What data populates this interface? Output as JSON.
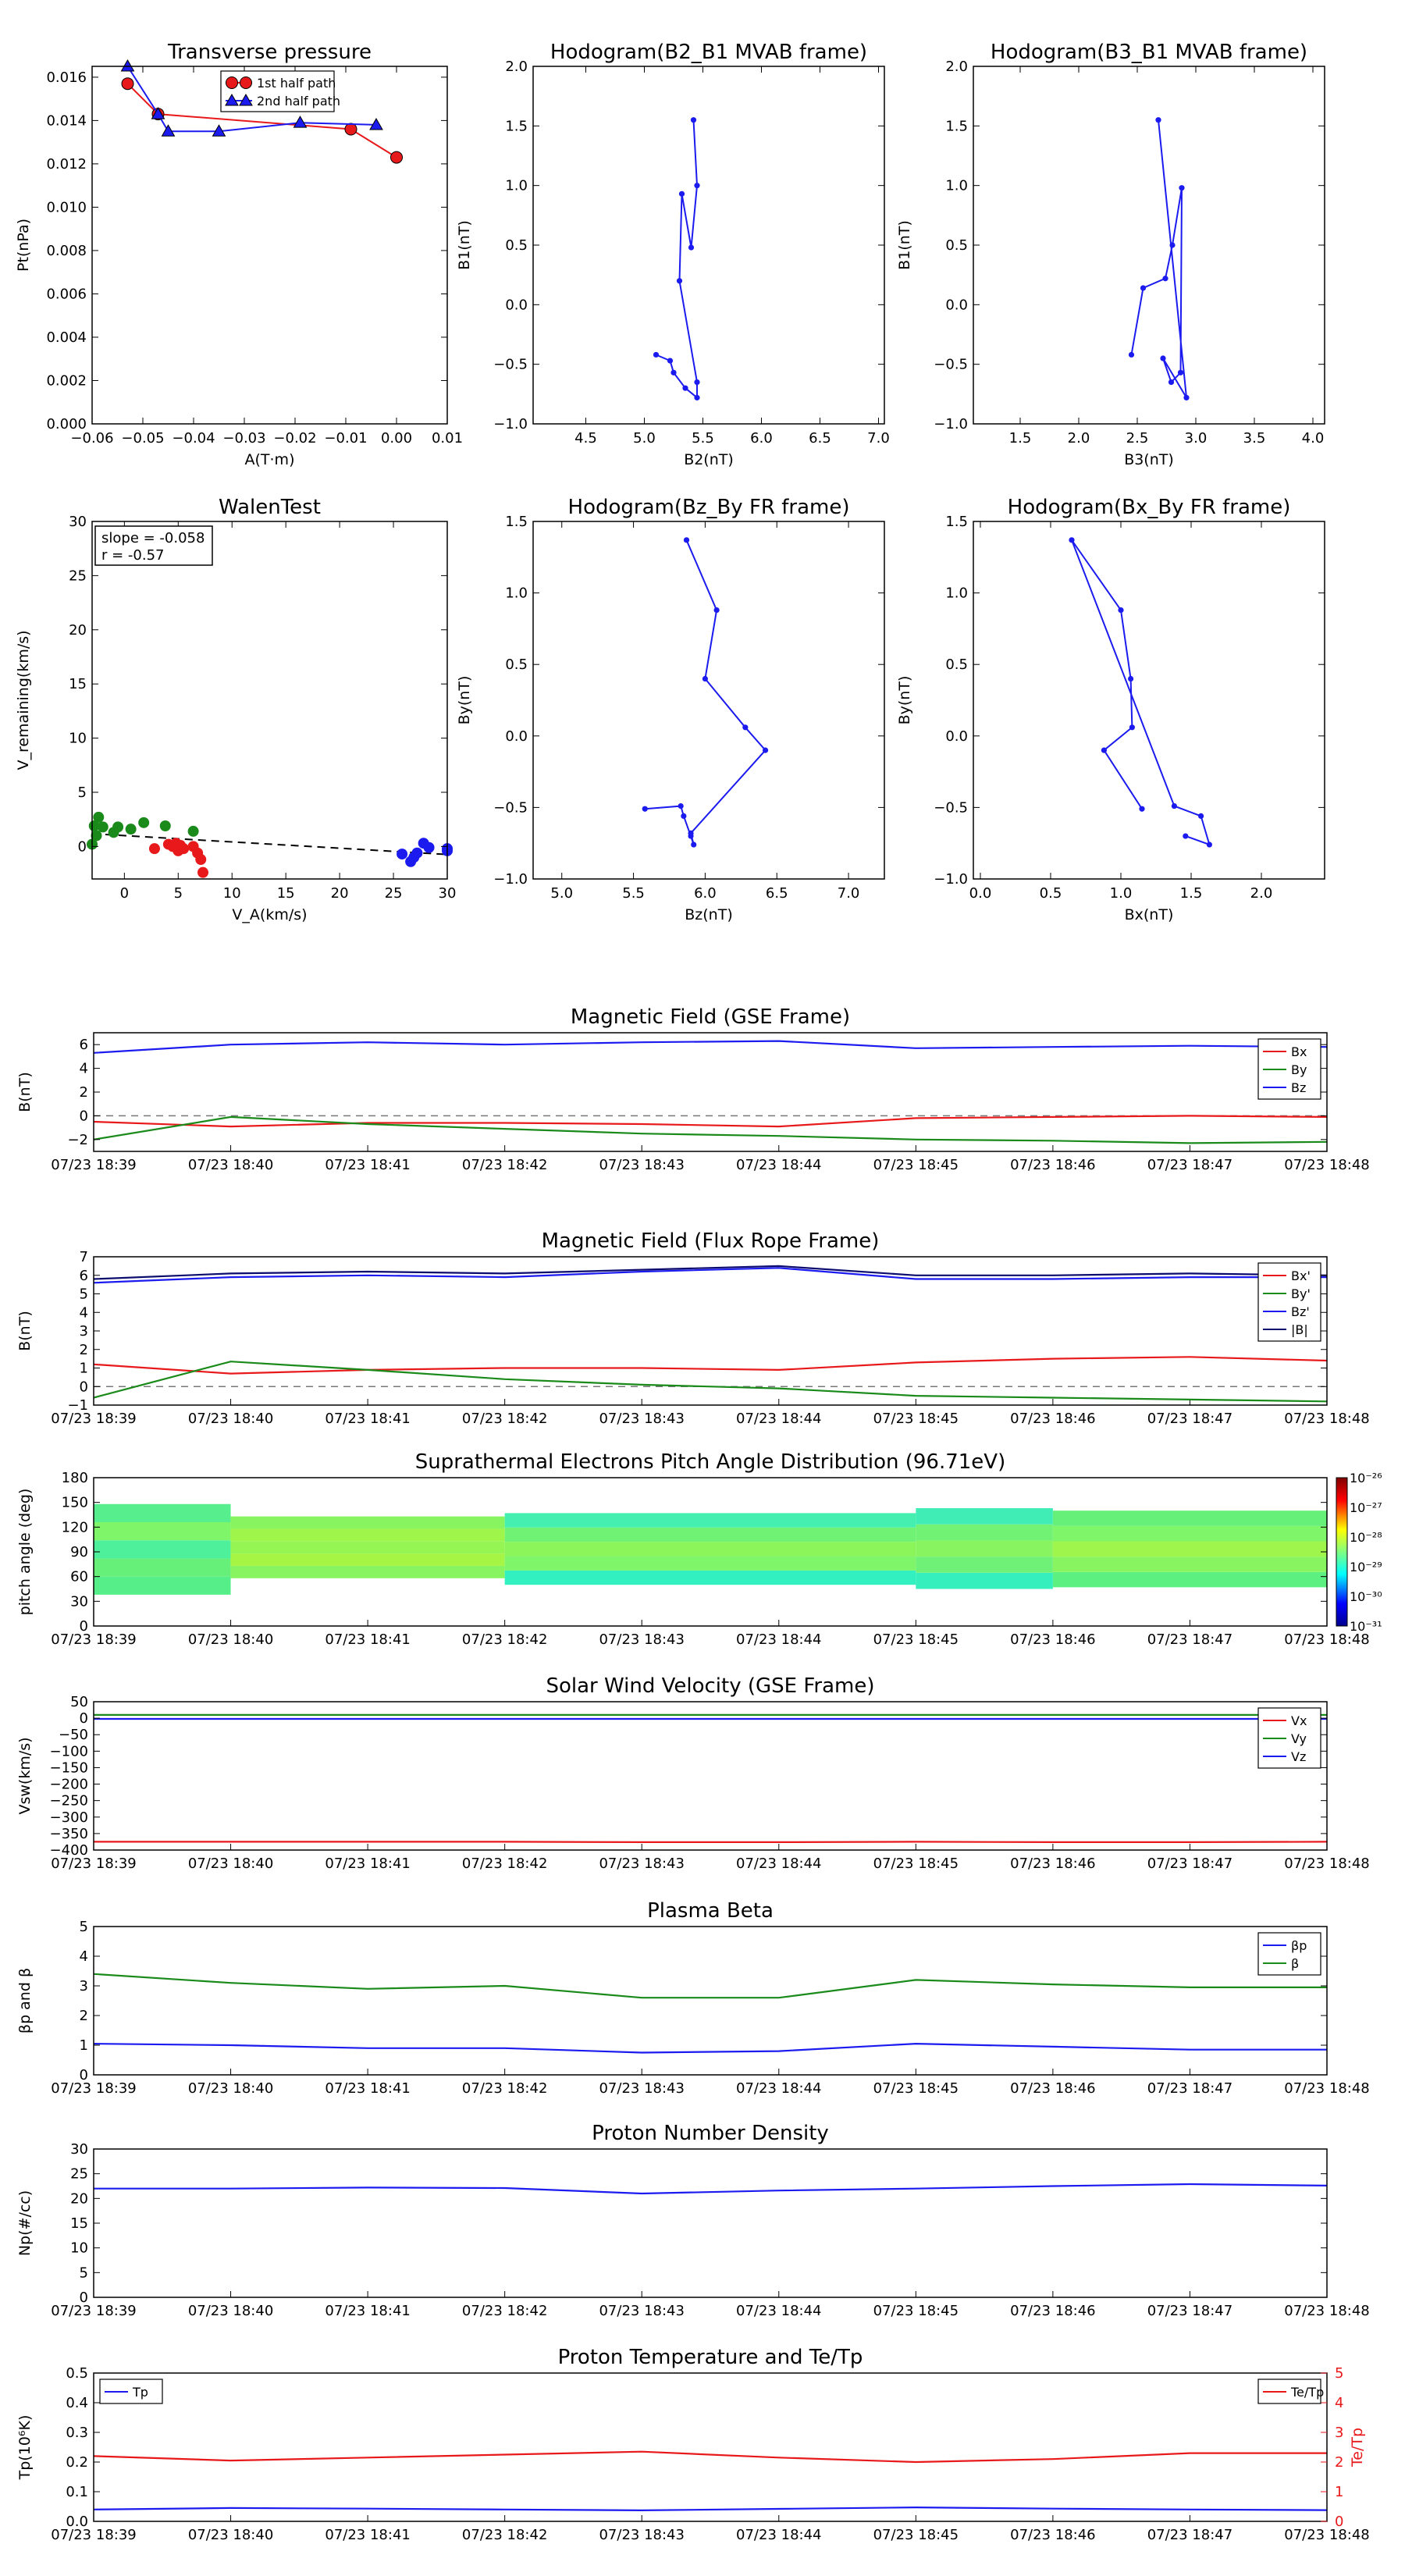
{
  "colors": {
    "red": "#e8191b",
    "green": "#1a8a1a",
    "blue": "#1b1bf0",
    "navy": "#0c0c6e",
    "black": "#000000",
    "grey": "#777777"
  },
  "time_ticks": [
    "07/23 18:39",
    "07/23 18:40",
    "07/23 18:41",
    "07/23 18:42",
    "07/23 18:43",
    "07/23 18:44",
    "07/23 18:45",
    "07/23 18:46",
    "07/23 18:47",
    "07/23 18:48"
  ],
  "chart_data": [
    {
      "id": "pt",
      "type": "line",
      "title": "Transverse pressure",
      "xlabel": "A(T·m)",
      "ylabel": "Pt(nPa)",
      "xlim": [
        -0.06,
        0.01
      ],
      "ylim": [
        0,
        0.0165
      ],
      "xticks": [
        -0.06,
        -0.05,
        -0.04,
        -0.03,
        -0.02,
        -0.01,
        0.0,
        0.01
      ],
      "xticklabels": [
        "−0.06",
        "−0.05",
        "−0.04",
        "−0.03",
        "−0.02",
        "−0.01",
        "0.00",
        "0.01"
      ],
      "yticks": [
        0,
        0.002,
        0.004,
        0.006,
        0.008,
        0.01,
        0.012,
        0.014,
        0.016
      ],
      "yticklabels": [
        "0.000",
        "0.002",
        "0.004",
        "0.006",
        "0.008",
        "0.010",
        "0.012",
        "0.014",
        "0.016"
      ],
      "legend": "top-center",
      "series": [
        {
          "name": "1st half path",
          "color": "red",
          "marker": "circle",
          "x": [
            0.0,
            -0.009,
            -0.047,
            -0.053
          ],
          "y": [
            0.0123,
            0.0136,
            0.0143,
            0.0157
          ]
        },
        {
          "name": "2nd half path",
          "color": "blue",
          "marker": "triangle",
          "x": [
            -0.053,
            -0.047,
            -0.045,
            -0.035,
            -0.019,
            -0.004
          ],
          "y": [
            0.0165,
            0.0143,
            0.0135,
            0.0135,
            0.0139,
            0.0138
          ]
        }
      ]
    },
    {
      "id": "h1",
      "type": "line",
      "title": "Hodogram(B2_B1 MVAB frame)",
      "xlabel": "B2(nT)",
      "ylabel": "B1(nT)",
      "xlim": [
        4.05,
        7.05
      ],
      "ylim": [
        -1.0,
        2.0
      ],
      "xticks": [
        4.5,
        5.0,
        5.5,
        6.0,
        6.5,
        7.0
      ],
      "xticklabels": [
        "4.5",
        "5.0",
        "5.5",
        "6.0",
        "6.5",
        "7.0"
      ],
      "yticks": [
        -1.0,
        -0.5,
        0.0,
        0.5,
        1.0,
        1.5,
        2.0
      ],
      "yticklabels": [
        "−1.0",
        "−0.5",
        "0.0",
        "0.5",
        "1.0",
        "1.5",
        "2.0"
      ],
      "series": [
        {
          "color": "blue",
          "marker": "dot",
          "x": [
            5.1,
            5.22,
            5.25,
            5.35,
            5.45,
            5.45,
            5.3,
            5.32,
            5.4,
            5.45,
            5.42
          ],
          "y": [
            -0.42,
            -0.47,
            -0.57,
            -0.7,
            -0.78,
            -0.65,
            0.2,
            0.93,
            0.48,
            1.0,
            1.55
          ]
        }
      ]
    },
    {
      "id": "h2",
      "type": "line",
      "title": "Hodogram(B3_B1 MVAB frame)",
      "xlabel": "B3(nT)",
      "ylabel": "B1(nT)",
      "xlim": [
        1.1,
        4.1
      ],
      "ylim": [
        -1.0,
        2.0
      ],
      "xticks": [
        1.5,
        2.0,
        2.5,
        3.0,
        3.5,
        4.0
      ],
      "xticklabels": [
        "1.5",
        "2.0",
        "2.5",
        "3.0",
        "3.5",
        "4.0"
      ],
      "yticks": [
        -1.0,
        -0.5,
        0.0,
        0.5,
        1.0,
        1.5,
        2.0
      ],
      "yticklabels": [
        "−1.0",
        "−0.5",
        "0.0",
        "0.5",
        "1.0",
        "1.5",
        "2.0"
      ],
      "series": [
        {
          "color": "blue",
          "marker": "dot",
          "x": [
            2.45,
            2.55,
            2.74,
            2.8,
            2.88,
            2.87,
            2.79,
            2.72,
            2.92,
            2.68
          ],
          "y": [
            -0.42,
            0.14,
            0.22,
            0.5,
            0.98,
            -0.57,
            -0.65,
            -0.45,
            -0.78,
            1.55
          ]
        }
      ]
    },
    {
      "id": "walen",
      "type": "scatter",
      "title": "WalenTest",
      "xlabel": "V_A(km/s)",
      "ylabel": "V_remaining(km/s)",
      "xlim": [
        -3,
        30
      ],
      "ylim": [
        -3,
        30
      ],
      "xticks": [
        0,
        5,
        10,
        15,
        20,
        25,
        30
      ],
      "xticklabels": [
        "0",
        "5",
        "10",
        "15",
        "20",
        "25",
        "30"
      ],
      "yticks": [
        0,
        5,
        10,
        15,
        20,
        25,
        30
      ],
      "yticklabels": [
        "0",
        "5",
        "10",
        "15",
        "20",
        "25",
        "30"
      ],
      "annotation": [
        "slope = -0.058",
        "r = -0.57"
      ],
      "fit": {
        "slope": -0.058,
        "intercept": 1.0
      },
      "series": [
        {
          "color": "green",
          "x": [
            -3.0,
            -2.8,
            -2.6,
            -2.4,
            -2.0,
            -1.0,
            -0.6,
            0.6,
            1.8,
            3.8,
            6.4
          ],
          "y": [
            0.2,
            1.9,
            1.0,
            2.7,
            1.8,
            1.3,
            1.8,
            1.6,
            2.2,
            1.9,
            1.4
          ]
        },
        {
          "color": "red",
          "x": [
            2.8,
            4.1,
            4.5,
            4.8,
            5.0,
            5.2,
            5.5,
            6.4,
            6.8,
            7.1,
            7.3
          ],
          "y": [
            -0.2,
            0.2,
            0.0,
            0.3,
            -0.4,
            0.1,
            -0.2,
            0.0,
            -0.6,
            -1.2,
            -2.4
          ]
        },
        {
          "color": "blue",
          "x": [
            25.8,
            26.6,
            26.9,
            27.2,
            27.8,
            28.3,
            30.0,
            30.0
          ],
          "y": [
            -0.7,
            -1.4,
            -1.0,
            -0.6,
            0.3,
            -0.1,
            -0.2,
            -0.4
          ]
        }
      ]
    },
    {
      "id": "h3",
      "type": "line",
      "title": "Hodogram(Bz_By FR frame)",
      "xlabel": "Bz(nT)",
      "ylabel": "By(nT)",
      "xlim": [
        4.8,
        7.25
      ],
      "ylim": [
        -1.0,
        1.5
      ],
      "xticks": [
        5.0,
        5.5,
        6.0,
        6.5,
        7.0
      ],
      "xticklabels": [
        "5.0",
        "5.5",
        "6.0",
        "6.5",
        "7.0"
      ],
      "yticks": [
        -1.0,
        -0.5,
        0.0,
        0.5,
        1.0,
        1.5
      ],
      "yticklabels": [
        "−1.0",
        "−0.5",
        "0.0",
        "0.5",
        "1.0",
        "1.5"
      ],
      "series": [
        {
          "color": "blue",
          "marker": "dot",
          "x": [
            5.58,
            5.83,
            5.85,
            5.9,
            5.92,
            5.9,
            6.42,
            6.28,
            6.0,
            6.08,
            5.87
          ],
          "y": [
            -0.51,
            -0.49,
            -0.56,
            -0.7,
            -0.76,
            -0.68,
            -0.1,
            0.06,
            0.4,
            0.88,
            1.37
          ]
        }
      ]
    },
    {
      "id": "h4",
      "type": "line",
      "title": "Hodogram(Bx_By FR frame)",
      "xlabel": "Bx(nT)",
      "ylabel": "By(nT)",
      "xlim": [
        -0.05,
        2.45
      ],
      "ylim": [
        -1.0,
        1.5
      ],
      "xticks": [
        0.0,
        0.5,
        1.0,
        1.5,
        2.0
      ],
      "xticklabels": [
        "0.0",
        "0.5",
        "1.0",
        "1.5",
        "2.0"
      ],
      "yticks": [
        -1.0,
        -0.5,
        0.0,
        0.5,
        1.0,
        1.5
      ],
      "yticklabels": [
        "−1.0",
        "−0.5",
        "0.0",
        "0.5",
        "1.0",
        "1.5"
      ],
      "series": [
        {
          "color": "blue",
          "marker": "dot",
          "x": [
            1.15,
            0.88,
            1.08,
            1.07,
            1.0,
            0.65,
            1.38,
            1.57,
            1.63,
            1.46
          ],
          "y": [
            -0.51,
            -0.1,
            0.06,
            0.4,
            0.88,
            1.37,
            -0.49,
            -0.56,
            -0.76,
            -0.7
          ]
        }
      ]
    },
    {
      "id": "bgse",
      "type": "line",
      "title": "Magnetic Field (GSE Frame)",
      "ylabel": "B(nT)",
      "ylim": [
        -3,
        7
      ],
      "yticks": [
        -2,
        0,
        2,
        4,
        6
      ],
      "yticklabels": [
        "−2",
        "0",
        "2",
        "4",
        "6"
      ],
      "zero_line": true,
      "legend": "right",
      "series": [
        {
          "name": "Bx",
          "color": "red",
          "values": [
            -0.5,
            -0.9,
            -0.6,
            -0.6,
            -0.7,
            -0.9,
            -0.2,
            -0.1,
            0.0,
            -0.1
          ]
        },
        {
          "name": "By",
          "color": "green",
          "values": [
            -2.0,
            -0.1,
            -0.7,
            -1.1,
            -1.5,
            -1.7,
            -2.0,
            -2.1,
            -2.3,
            -2.2
          ]
        },
        {
          "name": "Bz",
          "color": "blue",
          "values": [
            5.3,
            6.0,
            6.2,
            6.0,
            6.2,
            6.3,
            5.7,
            5.8,
            5.9,
            5.8
          ]
        }
      ]
    },
    {
      "id": "bfr",
      "type": "line",
      "title": "Magnetic Field (Flux Rope Frame)",
      "ylabel": "B(nT)",
      "ylim": [
        -1,
        7
      ],
      "yticks": [
        -1,
        0,
        1,
        2,
        3,
        4,
        5,
        6,
        7
      ],
      "yticklabels": [
        "−1",
        "0",
        "1",
        "2",
        "3",
        "4",
        "5",
        "6",
        "7"
      ],
      "zero_line": true,
      "legend": "right",
      "series": [
        {
          "name": "Bx'",
          "color": "red",
          "values": [
            1.2,
            0.7,
            0.9,
            1.0,
            1.0,
            0.9,
            1.3,
            1.5,
            1.6,
            1.4
          ]
        },
        {
          "name": "By'",
          "color": "green",
          "values": [
            -0.6,
            1.35,
            0.9,
            0.4,
            0.1,
            -0.1,
            -0.5,
            -0.6,
            -0.7,
            -0.8
          ]
        },
        {
          "name": "Bz'",
          "color": "blue",
          "values": [
            5.6,
            5.9,
            6.0,
            5.9,
            6.2,
            6.4,
            5.8,
            5.8,
            5.9,
            5.9
          ]
        },
        {
          "name": "|B|",
          "color": "navy",
          "values": [
            5.8,
            6.1,
            6.2,
            6.1,
            6.3,
            6.5,
            6.0,
            6.0,
            6.1,
            6.0
          ]
        }
      ]
    },
    {
      "id": "pad",
      "type": "heatmap",
      "title": "Suprathermal Electrons Pitch Angle Distribution (96.71eV)",
      "ylabel": "pitch angle (deg)",
      "ylim": [
        0,
        180
      ],
      "yticks": [
        0,
        30,
        60,
        90,
        120,
        150,
        180
      ],
      "yticklabels": [
        "0",
        "30",
        "60",
        "90",
        "120",
        "150",
        "180"
      ],
      "colorbar": {
        "labels": [
          "10⁻²⁶",
          "10⁻²⁷",
          "10⁻²⁸",
          "10⁻²⁹",
          "10⁻³⁰",
          "10⁻³¹"
        ]
      }
    },
    {
      "id": "vsw",
      "type": "line",
      "title": "Solar Wind Velocity (GSE Frame)",
      "ylabel": "Vsw(km/s)",
      "ylim": [
        -400,
        50
      ],
      "yticks": [
        -400,
        -350,
        -300,
        -250,
        -200,
        -150,
        -100,
        -50,
        0,
        50
      ],
      "yticklabels": [
        "−400",
        "−350",
        "−300",
        "−250",
        "−200",
        "−150",
        "−100",
        "−50",
        "0",
        "50"
      ],
      "legend": "right",
      "series": [
        {
          "name": "Vx",
          "color": "red",
          "values": [
            -375,
            -375,
            -375,
            -375,
            -376,
            -376,
            -375,
            -376,
            -376,
            -375
          ]
        },
        {
          "name": "Vy",
          "color": "green",
          "values": [
            10,
            10,
            10,
            10,
            10,
            10,
            10,
            10,
            10,
            10
          ]
        },
        {
          "name": "Vz",
          "color": "blue",
          "values": [
            -2,
            -2,
            -2,
            -2,
            -2,
            -2,
            -2,
            -2,
            -2,
            -2
          ]
        }
      ]
    },
    {
      "id": "beta",
      "type": "line",
      "title": "Plasma Beta",
      "ylabel": "βp and β",
      "ylim": [
        0,
        5
      ],
      "yticks": [
        0,
        1,
        2,
        3,
        4,
        5
      ],
      "yticklabels": [
        "0",
        "1",
        "2",
        "3",
        "4",
        "5"
      ],
      "legend": "right",
      "series": [
        {
          "name": "βp",
          "color": "blue",
          "values": [
            1.05,
            1.0,
            0.9,
            0.9,
            0.75,
            0.8,
            1.05,
            0.95,
            0.85,
            0.85
          ]
        },
        {
          "name": "β",
          "color": "green",
          "values": [
            3.4,
            3.1,
            2.9,
            3.0,
            2.6,
            2.6,
            3.2,
            3.05,
            2.95,
            2.95
          ]
        }
      ]
    },
    {
      "id": "np",
      "type": "line",
      "title": "Proton Number Density",
      "ylabel": "Np(#/cc)",
      "ylim": [
        0,
        30
      ],
      "yticks": [
        0,
        5,
        10,
        15,
        20,
        25,
        30
      ],
      "yticklabels": [
        "0",
        "5",
        "10",
        "15",
        "20",
        "25",
        "30"
      ],
      "series": [
        {
          "color": "blue",
          "values": [
            22,
            22,
            22.2,
            22.1,
            21.0,
            21.6,
            22.0,
            22.5,
            22.9,
            22.6
          ]
        }
      ]
    },
    {
      "id": "tp",
      "type": "line",
      "title": "Proton Temperature and Te/Tp",
      "ylabel": "Tp(10⁶K)",
      "ylim": [
        0,
        0.5
      ],
      "yticks": [
        0,
        0.1,
        0.2,
        0.3,
        0.4,
        0.5
      ],
      "yticklabels": [
        "0.0",
        "0.1",
        "0.2",
        "0.3",
        "0.4",
        "0.5"
      ],
      "y2label": "Te/Tp",
      "y2lim": [
        0,
        5
      ],
      "y2ticks": [
        0,
        1,
        2,
        3,
        4,
        5
      ],
      "y2ticklabels": [
        "0",
        "1",
        "2",
        "3",
        "4",
        "5"
      ],
      "legend": "left and right",
      "series": [
        {
          "name": "Tp",
          "color": "blue",
          "values": [
            0.04,
            0.045,
            0.043,
            0.04,
            0.037,
            0.042,
            0.047,
            0.043,
            0.04,
            0.038
          ]
        },
        {
          "name": "Te/Tp",
          "color": "red",
          "axis": "right",
          "values": [
            2.2,
            2.05,
            2.15,
            2.25,
            2.35,
            2.15,
            2.0,
            2.1,
            2.3,
            2.3
          ]
        }
      ]
    }
  ]
}
